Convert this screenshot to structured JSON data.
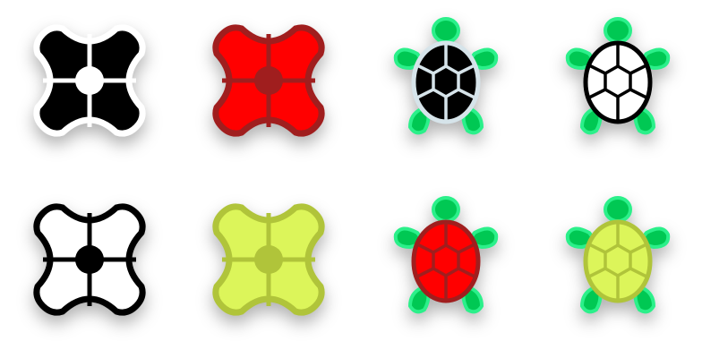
{
  "tiles": [
    {
      "kind": "star",
      "fill": "#000000",
      "stroke": "#ffffff",
      "center": "#ffffff"
    },
    {
      "kind": "star",
      "fill": "#ff0000",
      "stroke": "#a01e1e",
      "center": "#a01e1e"
    },
    {
      "kind": "turtle",
      "shell": "#000000",
      "stroke": "#d6e4ea",
      "body": "#00c853",
      "bodyEdge": "#2bf08a"
    },
    {
      "kind": "turtle",
      "shell": "#ffffff",
      "stroke": "#000000",
      "body": "#00c853",
      "bodyEdge": "#2bf08a"
    },
    {
      "kind": "star",
      "fill": "#ffffff",
      "stroke": "#000000",
      "center": "#000000"
    },
    {
      "kind": "star",
      "fill": "#dcf55a",
      "stroke": "#b0c43a",
      "center": "#b0c43a"
    },
    {
      "kind": "turtle",
      "shell": "#ff0000",
      "stroke": "#a01e1e",
      "body": "#00c853",
      "bodyEdge": "#2bf08a"
    },
    {
      "kind": "turtle",
      "shell": "#dcf55a",
      "stroke": "#b0c43a",
      "body": "#00c853",
      "bodyEdge": "#2bf08a"
    }
  ]
}
